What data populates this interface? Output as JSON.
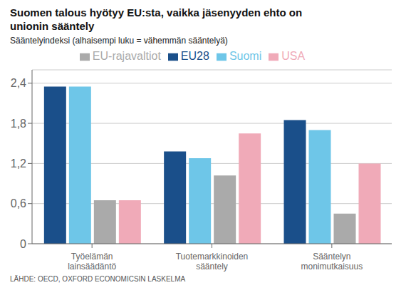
{
  "chart_data": {
    "type": "bar",
    "title": "Suomen talous hyötyy EU:sta, vaikka jäsenyyden ehto on unionin sääntely",
    "subtitle": "Sääntelyindeksi (alhaisempi luku = vähemmän sääntelyä)",
    "annotations": [
      "LÄHDE: OECD, OXFORD ECONOMICSIN LASKELMA"
    ],
    "categories": [
      "Työelämän\nlainsäädäntö",
      "Tuotemarkkinoiden\nsääntely",
      "Sääntelyn\nmonimutkaisuus"
    ],
    "series": [
      {
        "name": "EU28",
        "color": "#1a4f8a",
        "values": [
          2.35,
          1.38,
          1.85
        ]
      },
      {
        "name": "Suomi",
        "color": "#6ec6e8",
        "values": [
          2.35,
          1.28,
          1.7
        ]
      },
      {
        "name": "EU-rajavaltiot",
        "color": "#aaaaaa",
        "values": [
          0.65,
          1.02,
          0.45
        ]
      },
      {
        "name": "USA",
        "color": "#f0aab8",
        "values": [
          0.65,
          1.65,
          1.2
        ]
      }
    ],
    "ylim": [
      0,
      2.6
    ],
    "yticks": [
      0,
      {
        "value": 0.6,
        "label": "0,6"
      },
      {
        "value": 1.2,
        "label": "1,2"
      },
      {
        "value": 1.8,
        "label": "1,8"
      },
      {
        "value": 2.4,
        "label": "2,4"
      }
    ],
    "grid": true,
    "legend": "top"
  }
}
